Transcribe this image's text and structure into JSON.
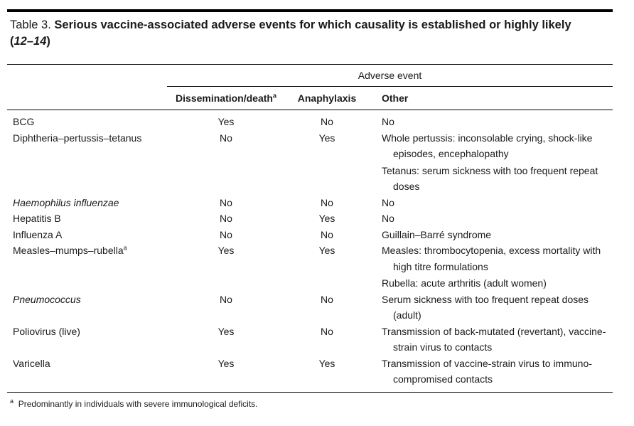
{
  "title": {
    "label": "Table 3.",
    "text": "Serious vaccine-associated adverse events for which causality is established or highly likely (",
    "refs": "12–14",
    "close": ")"
  },
  "table": {
    "group_header": "Adverse event",
    "columns": [
      {
        "text": "Dissemination/death",
        "note": "a"
      },
      {
        "text": "Anaphylaxis"
      },
      {
        "text": "Other"
      }
    ],
    "rows": [
      {
        "vaccine": "BCG",
        "dissemination": "Yes",
        "anaphylaxis": "No",
        "other": [
          "No"
        ]
      },
      {
        "vaccine": "Diphtheria–pertussis–tetanus",
        "dissemination": "No",
        "anaphylaxis": "Yes",
        "other": [
          "Whole pertussis: inconsolable crying, shock-like episodes, encephalopathy",
          "Tetanus: serum sickness with too frequent repeat doses"
        ]
      },
      {
        "vaccine": "Haemophilus influenzae",
        "italic": true,
        "dissemination": "No",
        "anaphylaxis": "No",
        "other": [
          "No"
        ]
      },
      {
        "vaccine": "Hepatitis B",
        "dissemination": "No",
        "anaphylaxis": "Yes",
        "other": [
          "No"
        ]
      },
      {
        "vaccine": "Influenza A",
        "dissemination": "No",
        "anaphylaxis": "No",
        "other": [
          "Guillain–Barré syndrome"
        ]
      },
      {
        "vaccine": "Measles–mumps–rubella",
        "note": "a",
        "dissemination": "Yes",
        "anaphylaxis": "Yes",
        "other": [
          "Measles: thrombocytopenia, excess mortality with high titre formulations",
          "Rubella: acute arthritis (adult women)"
        ]
      },
      {
        "vaccine": "Pneumococcus",
        "italic": true,
        "dissemination": "No",
        "anaphylaxis": "No",
        "other": [
          "Serum sickness with too frequent repeat doses (adult)"
        ]
      },
      {
        "vaccine": "Poliovirus (live)",
        "dissemination": "Yes",
        "anaphylaxis": "No",
        "other": [
          "Transmission of back-mutated (revertant), vaccine-strain virus to contacts"
        ]
      },
      {
        "vaccine": "Varicella",
        "dissemination": "Yes",
        "anaphylaxis": "Yes",
        "other": [
          "Transmission of vaccine-strain virus to immuno-compromised contacts"
        ]
      }
    ]
  },
  "footnote": {
    "mark": "a",
    "text": "Predominantly in individuals with severe immunological deficits."
  }
}
